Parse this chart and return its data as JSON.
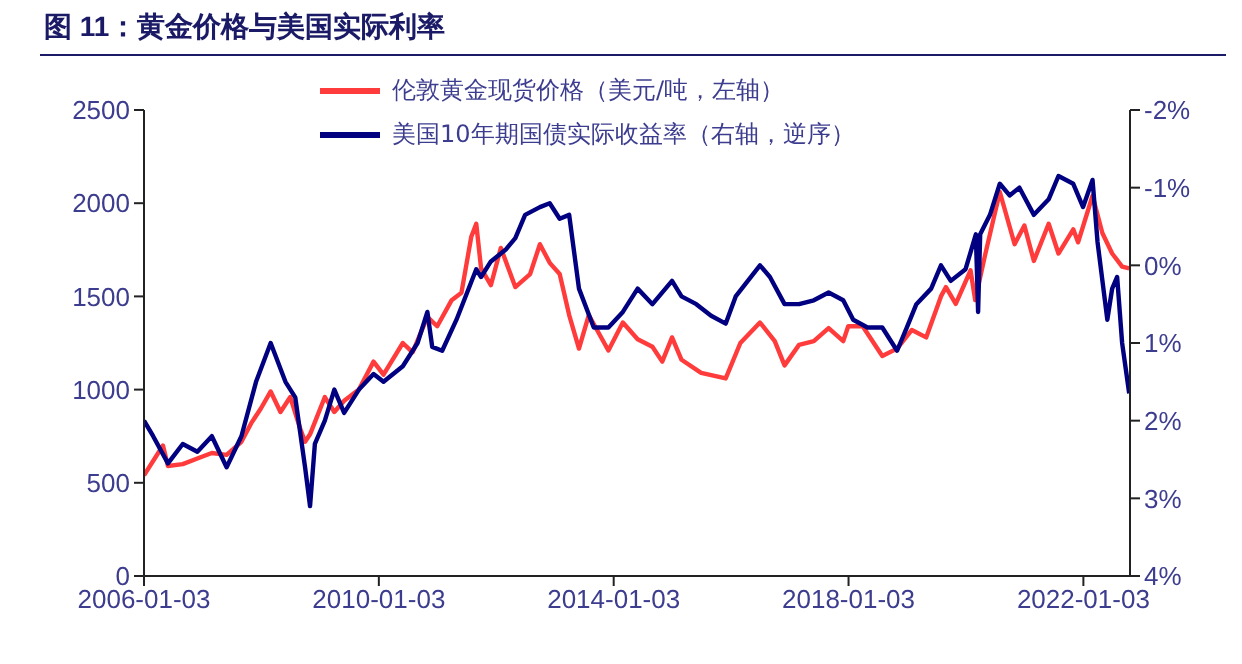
{
  "chart_data": {
    "type": "line",
    "title": "图 11：黄金价格与美国实际利率",
    "xlim": [
      "2006-01-03",
      "2022-10-20"
    ],
    "xticks": [
      "2006-01-03",
      "2010-01-03",
      "2014-01-03",
      "2018-01-03",
      "2022-01-03"
    ],
    "ylim": [
      0,
      2500
    ],
    "yticks": [
      0,
      500,
      1000,
      1500,
      2000,
      2500
    ],
    "y2lim": [
      4,
      -2
    ],
    "y2ticks": [
      {
        "value": -2,
        "label": "-2%"
      },
      {
        "value": -1,
        "label": "-1%"
      },
      {
        "value": 0,
        "label": "0%"
      },
      {
        "value": 1,
        "label": "1%"
      },
      {
        "value": 2,
        "label": "2%"
      },
      {
        "value": 3,
        "label": "3%"
      },
      {
        "value": 4,
        "label": "4%"
      }
    ],
    "legend": "top",
    "marker": "none",
    "line_style": "solid",
    "series": [
      {
        "name": "伦敦黄金现货价格（美元/吨，左轴）",
        "color": "#ff3b3b",
        "x": [
          "2006-01-03",
          "2006-05",
          "2006-06",
          "2006-09",
          "2006-12",
          "2007-03",
          "2007-06",
          "2007-09",
          "2007-11",
          "2008-01",
          "2008-03",
          "2008-05",
          "2008-07",
          "2008-09",
          "2008-10",
          "2008-11",
          "2009-02",
          "2009-04",
          "2009-06",
          "2009-09",
          "2009-12",
          "2010-02",
          "2010-06",
          "2010-08",
          "2010-11",
          "2011-01",
          "2011-04",
          "2011-06",
          "2011-08",
          "2011-09",
          "2011-10",
          "2011-12",
          "2012-02",
          "2012-05",
          "2012-08",
          "2012-10",
          "2012-12",
          "2013-02",
          "2013-04",
          "2013-06",
          "2013-08",
          "2013-12",
          "2014-03",
          "2014-06",
          "2014-09",
          "2014-11",
          "2015-01",
          "2015-03",
          "2015-07",
          "2015-12",
          "2016-03",
          "2016-07",
          "2016-10",
          "2016-12",
          "2017-03",
          "2017-06",
          "2017-09",
          "2017-12",
          "2018-01",
          "2018-04",
          "2018-08",
          "2018-11",
          "2019-02",
          "2019-05",
          "2019-08",
          "2019-09",
          "2019-11",
          "2020-02",
          "2020-03",
          "2020-05",
          "2020-08",
          "2020-11",
          "2021-01",
          "2021-03",
          "2021-06",
          "2021-08",
          "2021-11",
          "2021-12",
          "2022-03",
          "2022-05",
          "2022-07",
          "2022-09",
          "2022-10-15"
        ],
        "values": [
          540,
          700,
          590,
          600,
          630,
          660,
          650,
          720,
          820,
          900,
          990,
          880,
          960,
          790,
          720,
          760,
          960,
          880,
          940,
          1000,
          1150,
          1080,
          1250,
          1200,
          1390,
          1340,
          1480,
          1520,
          1820,
          1890,
          1650,
          1560,
          1760,
          1550,
          1620,
          1780,
          1680,
          1620,
          1400,
          1220,
          1400,
          1210,
          1360,
          1270,
          1230,
          1150,
          1280,
          1160,
          1090,
          1060,
          1250,
          1360,
          1260,
          1130,
          1240,
          1260,
          1330,
          1260,
          1340,
          1340,
          1180,
          1220,
          1320,
          1280,
          1500,
          1550,
          1460,
          1640,
          1480,
          1720,
          2060,
          1780,
          1880,
          1690,
          1890,
          1730,
          1860,
          1790,
          2040,
          1840,
          1730,
          1660,
          1650
        ]
      },
      {
        "name": "美国10年期国债实际收益率（右轴，逆序）",
        "color": "#000080",
        "axis": "y2",
        "x": [
          "2006-01-03",
          "2006-03",
          "2006-06",
          "2006-09",
          "2006-12",
          "2007-03",
          "2007-06",
          "2007-09",
          "2007-12",
          "2008-03",
          "2008-06",
          "2008-08",
          "2008-10",
          "2008-11",
          "2008-12",
          "2009-02",
          "2009-04",
          "2009-06",
          "2009-09",
          "2009-12",
          "2010-02",
          "2010-06",
          "2010-09",
          "2010-11",
          "2010-12",
          "2011-02",
          "2011-05",
          "2011-09",
          "2011-10",
          "2011-12",
          "2012-03",
          "2012-05",
          "2012-07",
          "2012-10",
          "2012-12",
          "2013-02",
          "2013-04",
          "2013-06",
          "2013-09",
          "2013-12",
          "2014-03",
          "2014-06",
          "2014-09",
          "2015-01",
          "2015-03",
          "2015-06",
          "2015-09",
          "2015-12",
          "2016-02",
          "2016-07",
          "2016-09",
          "2016-12",
          "2017-03",
          "2017-06",
          "2017-09",
          "2017-12",
          "2018-02",
          "2018-05",
          "2018-08",
          "2018-11",
          "2019-01",
          "2019-03",
          "2019-06",
          "2019-08",
          "2019-10",
          "2020-01",
          "2020-03-05",
          "2020-03-19",
          "2020-04",
          "2020-06",
          "2020-08",
          "2020-10",
          "2020-12",
          "2021-03",
          "2021-06",
          "2021-08",
          "2021-11",
          "2022-01",
          "2022-03",
          "2022-04",
          "2022-06",
          "2022-07",
          "2022-08",
          "2022-09",
          "2022-10-15"
        ],
        "values": [
          2.0,
          2.2,
          2.55,
          2.3,
          2.4,
          2.2,
          2.6,
          2.2,
          1.5,
          1.0,
          1.5,
          1.7,
          2.6,
          3.1,
          2.3,
          2.0,
          1.6,
          1.9,
          1.6,
          1.4,
          1.5,
          1.3,
          1.0,
          0.6,
          1.05,
          1.1,
          0.7,
          0.05,
          0.15,
          -0.05,
          -0.2,
          -0.35,
          -0.65,
          -0.75,
          -0.8,
          -0.6,
          -0.65,
          0.3,
          0.8,
          0.8,
          0.6,
          0.3,
          0.5,
          0.2,
          0.4,
          0.5,
          0.65,
          0.75,
          0.4,
          0.0,
          0.15,
          0.5,
          0.5,
          0.45,
          0.35,
          0.45,
          0.7,
          0.8,
          0.8,
          1.1,
          0.8,
          0.5,
          0.3,
          0.0,
          0.2,
          0.05,
          -0.4,
          0.6,
          -0.4,
          -0.65,
          -1.05,
          -0.9,
          -1.0,
          -0.65,
          -0.85,
          -1.15,
          -1.05,
          -0.75,
          -1.1,
          -0.3,
          0.7,
          0.3,
          0.15,
          1.0,
          1.65
        ]
      }
    ]
  }
}
